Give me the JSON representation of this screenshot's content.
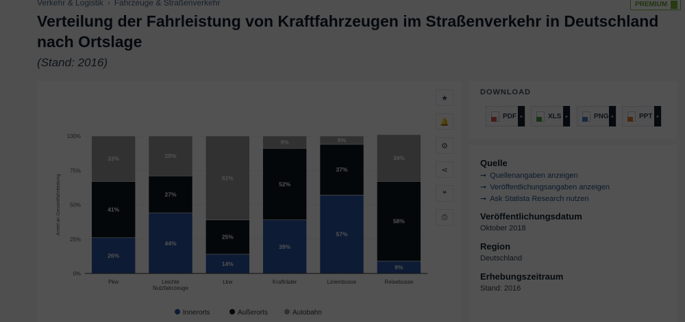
{
  "breadcrumb": {
    "items": [
      "Verkehr & Logistik",
      "Fahrzeuge & Straßenverkehr"
    ]
  },
  "premium_badge": "PREMIUM",
  "page": {
    "title": "Verteilung der Fahrleistung von Kraftfahrzeugen im Straßenverkehr in Deutschland nach Ortslage",
    "subtitle": "(Stand: 2016)"
  },
  "toolbar": {
    "items": [
      "favorite",
      "notification",
      "settings",
      "share",
      "cite",
      "print"
    ],
    "icons": [
      "★",
      "🔔",
      "⚙",
      "⋖",
      "❝",
      "⎙"
    ]
  },
  "download": {
    "title": "DOWNLOAD",
    "buttons": [
      {
        "label": "PDF",
        "color": "#d9534f"
      },
      {
        "label": "XLS",
        "color": "#4a9a3e"
      },
      {
        "label": "PNG",
        "color": "#3f7fbf"
      },
      {
        "label": "PPT",
        "color": "#e07b2a"
      }
    ],
    "plus": "+"
  },
  "info": {
    "source_title": "Quelle",
    "links": [
      "Quellenangaben anzeigen",
      "Veröffentlichungsangaben anzeigen",
      "Ask Statista Research nutzen"
    ],
    "arrow": "➞",
    "sections": [
      {
        "heading": "Veröffentlichungsdatum",
        "value": "Oktober 2018"
      },
      {
        "heading": "Region",
        "value": "Deutschland"
      },
      {
        "heading": "Erhebungszeitraum",
        "value": "Stand: 2016"
      }
    ]
  },
  "colors": {
    "innerorts": "#2c56a6",
    "ausserorts": "#0d1721",
    "autobahn": "#9a9a9a"
  },
  "chart_data": {
    "type": "bar",
    "stacked": true,
    "title": "Verteilung der Fahrleistung von Kraftfahrzeugen im Straßenverkehr in Deutschland nach Ortslage",
    "ylabel": "Anteil an Gesamtfahrleistung",
    "xlabel": "",
    "ylim": [
      0,
      100
    ],
    "yticks": [
      "0%",
      "25%",
      "50%",
      "75%",
      "100%"
    ],
    "categories": [
      "Pkw",
      "Leichte Nutzfahrzeuge",
      "Lkw",
      "Krafträder",
      "Linienbusse",
      "Reisebusse"
    ],
    "category_lines": [
      [
        "Pkw"
      ],
      [
        "Leichte",
        "Nutzfahrzeuge"
      ],
      [
        "Lkw"
      ],
      [
        "Krafträder"
      ],
      [
        "Linienbusse"
      ],
      [
        "Reisebusse"
      ]
    ],
    "series": [
      {
        "name": "Innerorts",
        "values": [
          26,
          44,
          14,
          39,
          57,
          9
        ]
      },
      {
        "name": "Außerorts",
        "values": [
          41,
          27,
          25,
          52,
          37,
          58
        ]
      },
      {
        "name": "Autobahn",
        "values": [
          33,
          29,
          61,
          9,
          6,
          34
        ]
      }
    ],
    "legend_position": "bottom"
  }
}
